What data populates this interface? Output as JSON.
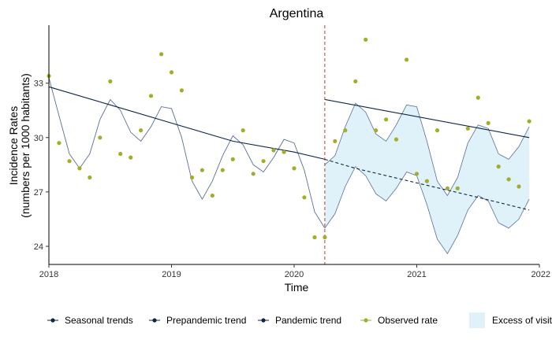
{
  "chart_data": {
    "type": "line",
    "title": "Argentina",
    "xlabel": "Time",
    "ylabel_line1": "Incidence Rates",
    "ylabel_line2": "(numbers per 1000 habitants)",
    "xlim": [
      2018.0,
      2022.0
    ],
    "ylim": [
      23.0,
      36.2
    ],
    "x_ticks": [
      2018,
      2019,
      2020,
      2021,
      2022
    ],
    "x_tick_labels": [
      "2018",
      "2019",
      "2020",
      "2021",
      "2022"
    ],
    "y_ticks": [
      24,
      27,
      30,
      33
    ],
    "y_tick_labels": [
      "24",
      "27",
      "30",
      "33"
    ],
    "pandemic_start": 2020.25,
    "grid": false,
    "legend_position": "bottom",
    "colors": {
      "observed": "#a3ad2a",
      "seasonal": "#5b6f95",
      "trend": "#0b2545",
      "excess_fill": "#dff1f9",
      "pandemic_line": "#c0392b"
    },
    "series": [
      {
        "name": "Observed rate",
        "x": [
          2018.0,
          2018.083,
          2018.167,
          2018.25,
          2018.333,
          2018.417,
          2018.5,
          2018.583,
          2018.667,
          2018.75,
          2018.833,
          2018.917,
          2019.0,
          2019.083,
          2019.167,
          2019.25,
          2019.333,
          2019.417,
          2019.5,
          2019.583,
          2019.667,
          2019.75,
          2019.833,
          2019.917,
          2020.0,
          2020.083,
          2020.167,
          2020.25,
          2020.333,
          2020.417,
          2020.5,
          2020.583,
          2020.667,
          2020.75,
          2020.833,
          2020.917,
          2021.0,
          2021.083,
          2021.167,
          2021.25,
          2021.333,
          2021.417,
          2021.5,
          2021.583,
          2021.667,
          2021.75,
          2021.833,
          2021.917
        ],
        "y": [
          33.4,
          29.7,
          28.7,
          28.3,
          27.8,
          30.0,
          33.1,
          29.1,
          28.9,
          30.4,
          32.3,
          34.6,
          33.6,
          32.6,
          27.8,
          28.2,
          26.8,
          28.2,
          28.8,
          30.4,
          28.0,
          28.7,
          29.3,
          29.2,
          28.3,
          26.7,
          24.5,
          24.5,
          29.8,
          30.4,
          33.1,
          35.4,
          30.4,
          31.0,
          29.9,
          34.3,
          28.0,
          27.6,
          30.4,
          27.2,
          27.2,
          30.5,
          32.2,
          30.8,
          28.4,
          27.7,
          27.3,
          30.9
        ]
      },
      {
        "name": "Seasonal trends",
        "x": [
          2018.0,
          2018.083,
          2018.167,
          2018.25,
          2018.333,
          2018.417,
          2018.5,
          2018.583,
          2018.667,
          2018.75,
          2018.833,
          2018.917,
          2019.0,
          2019.083,
          2019.167,
          2019.25,
          2019.333,
          2019.417,
          2019.5,
          2019.583,
          2019.667,
          2019.75,
          2019.833,
          2019.917,
          2020.0,
          2020.083,
          2020.167,
          2020.25
        ],
        "y": [
          33.3,
          31.2,
          29.1,
          28.3,
          29.1,
          31.0,
          32.1,
          31.5,
          30.3,
          29.8,
          30.6,
          31.7,
          31.6,
          30.0,
          27.6,
          26.6,
          27.6,
          29.0,
          30.1,
          29.6,
          28.5,
          28.1,
          28.9,
          29.9,
          29.7,
          28.2,
          25.9,
          25.0
        ]
      },
      {
        "name": "Prepandemic trend",
        "x": [
          2018.0,
          2018.5,
          2019.0,
          2019.5,
          2020.0,
          2020.25,
          2020.5,
          2021.0,
          2021.5,
          2021.917
        ],
        "y": [
          32.8,
          31.8,
          30.8,
          29.8,
          29.2,
          28.8,
          28.3,
          27.5,
          26.7,
          26.0
        ]
      },
      {
        "name": "Pandemic trend",
        "x": [
          2020.25,
          2021.917
        ],
        "y": [
          32.1,
          30.0
        ]
      }
    ],
    "excess_band": {
      "name": "Excess of visits",
      "x": [
        2020.25,
        2020.333,
        2020.417,
        2020.5,
        2020.583,
        2020.667,
        2020.75,
        2020.833,
        2020.917,
        2021.0,
        2021.083,
        2021.167,
        2021.25,
        2021.333,
        2021.417,
        2021.5,
        2021.583,
        2021.667,
        2021.75,
        2021.833,
        2021.917
      ],
      "upper": [
        28.5,
        29.0,
        30.6,
        31.9,
        31.4,
        30.2,
        29.8,
        30.7,
        31.8,
        31.7,
        29.8,
        27.6,
        26.8,
        27.8,
        29.7,
        30.7,
        30.5,
        29.1,
        28.8,
        29.5,
        30.6
      ],
      "lower": [
        25.0,
        25.8,
        27.3,
        28.4,
        27.9,
        26.9,
        26.5,
        27.2,
        28.1,
        27.9,
        26.3,
        24.4,
        23.6,
        24.6,
        26.0,
        26.8,
        26.5,
        25.3,
        25.0,
        25.5,
        26.6
      ]
    }
  },
  "legend": {
    "items": [
      {
        "label": "Seasonal trends",
        "kind": "line-dot"
      },
      {
        "label": "Prepandemic trend",
        "kind": "line-dot"
      },
      {
        "label": "Pandemic trend",
        "kind": "line-dot"
      },
      {
        "label": "Observed rate",
        "kind": "line-dot-green"
      },
      {
        "label": "Excess of visits",
        "kind": "fill"
      }
    ]
  }
}
